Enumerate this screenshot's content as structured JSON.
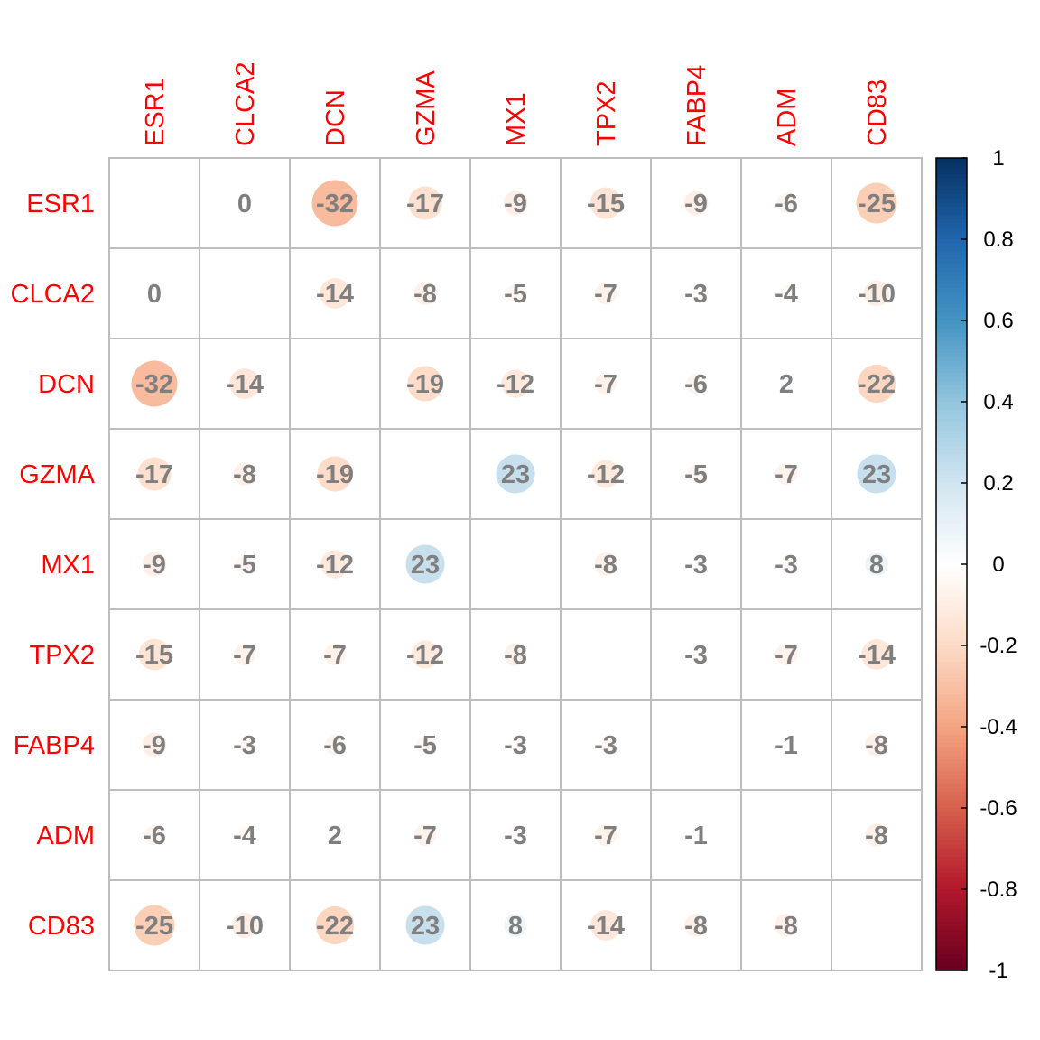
{
  "chart_data": {
    "type": "heatmap",
    "style": "corrplot-circle",
    "labels": [
      "ESR1",
      "CLCA2",
      "DCN",
      "GZMA",
      "MX1",
      "TPX2",
      "FABP4",
      "ADM",
      "CD83"
    ],
    "label_color": "#FF0000",
    "number_color": "#7F7F7F",
    "value_scale": "correlation x 100",
    "matrix": [
      [
        null,
        0,
        -32,
        -17,
        -9,
        -15,
        -9,
        -6,
        -25
      ],
      [
        0,
        null,
        -14,
        -8,
        -5,
        -7,
        -3,
        -4,
        -10
      ],
      [
        -32,
        -14,
        null,
        -19,
        -12,
        -7,
        -6,
        2,
        -22
      ],
      [
        -17,
        -8,
        -19,
        null,
        23,
        -12,
        -5,
        -7,
        23
      ],
      [
        -9,
        -5,
        -12,
        23,
        null,
        -8,
        -3,
        -3,
        8
      ],
      [
        -15,
        -7,
        -7,
        -12,
        -8,
        null,
        -3,
        -7,
        -14
      ],
      [
        -9,
        -3,
        -6,
        -5,
        -3,
        -3,
        null,
        -1,
        -8
      ],
      [
        -6,
        -4,
        2,
        -7,
        -3,
        -7,
        -1,
        null,
        -8
      ],
      [
        -25,
        -10,
        -22,
        23,
        8,
        -14,
        -8,
        -8,
        null
      ]
    ],
    "colorbar": {
      "range": [
        -1,
        1
      ],
      "ticks": [
        "1",
        "0.8",
        "0.6",
        "0.4",
        "0.2",
        "0",
        "-0.2",
        "-0.4",
        "-0.6",
        "-0.8",
        "-1"
      ],
      "tick_values": [
        1,
        0.8,
        0.6,
        0.4,
        0.2,
        0,
        -0.2,
        -0.4,
        -0.6,
        -0.8,
        -1
      ],
      "colors": [
        "#67001F",
        "#B2182B",
        "#D6604D",
        "#F4A582",
        "#FDDBC7",
        "#FFFFFF",
        "#D1E5F0",
        "#92C5DE",
        "#4393C3",
        "#2166AC",
        "#053061"
      ]
    },
    "grid": true
  }
}
